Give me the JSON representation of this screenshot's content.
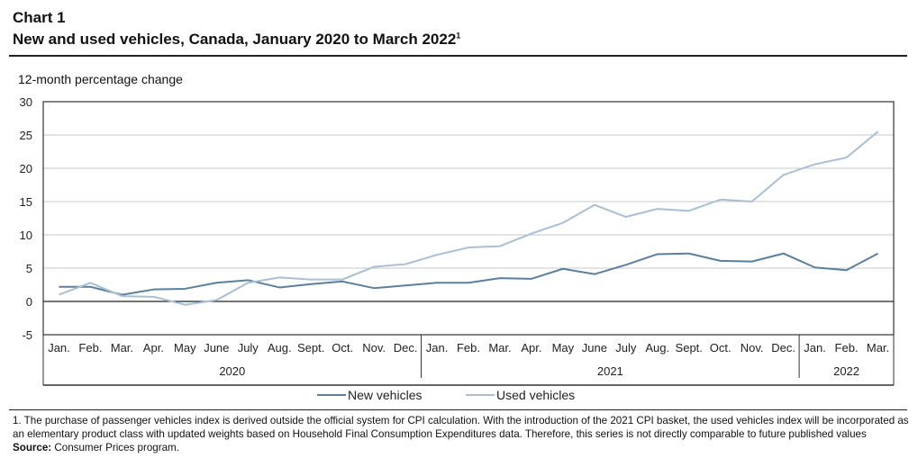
{
  "title": "Chart 1",
  "subtitle": "New and used vehicles, Canada, January 2020 to March 2022",
  "subtitle_note_marker": "1",
  "footnote": "1. The purchase of passenger vehicles index is derived outside the official system for CPI calculation. With the introduction of the 2021 CPI basket, the used vehicles index will be incorporated as an elementary product class with updated weights based on Household Final Consumption Expenditures data. Therefore, this series is not directly comparable to future published values",
  "source_label": "Source:",
  "source_text": "Consumer Prices program.",
  "chart_data": {
    "type": "line",
    "ylabel": "12-month percentage change",
    "ylim": [
      -5,
      30
    ],
    "yticks": [
      30,
      25,
      20,
      15,
      10,
      5,
      0,
      -5
    ],
    "grid": true,
    "legend_position": "bottom",
    "categories": [
      "Jan.",
      "Feb.",
      "Mar.",
      "Apr.",
      "May",
      "June",
      "July",
      "Aug.",
      "Sept.",
      "Oct.",
      "Nov.",
      "Dec.",
      "Jan.",
      "Feb.",
      "Mar.",
      "Apr.",
      "May",
      "June",
      "July",
      "Aug.",
      "Sept.",
      "Oct.",
      "Nov.",
      "Dec.",
      "Jan.",
      "Feb.",
      "Mar."
    ],
    "years": [
      {
        "label": "2020",
        "months": 12
      },
      {
        "label": "2021",
        "months": 12
      },
      {
        "label": "2022",
        "months": 3
      }
    ],
    "series": [
      {
        "name": "New vehicles",
        "color": "#5b7f9e",
        "values": [
          2.2,
          2.2,
          1.0,
          1.8,
          1.9,
          2.8,
          3.2,
          2.1,
          2.6,
          3.0,
          2.0,
          2.4,
          2.8,
          2.8,
          3.5,
          3.4,
          4.9,
          4.1,
          5.5,
          7.1,
          7.2,
          6.1,
          6.0,
          7.2,
          5.1,
          4.7,
          7.2
        ]
      },
      {
        "name": "Used vehicles",
        "color": "#a9bfd3",
        "values": [
          1.0,
          2.8,
          0.8,
          0.7,
          -0.5,
          0.2,
          2.8,
          3.6,
          3.3,
          3.3,
          5.2,
          5.6,
          7.0,
          8.1,
          8.3,
          10.2,
          11.8,
          14.5,
          12.7,
          13.9,
          13.6,
          15.3,
          15.0,
          19.0,
          20.6,
          21.6,
          25.5
        ]
      }
    ]
  }
}
